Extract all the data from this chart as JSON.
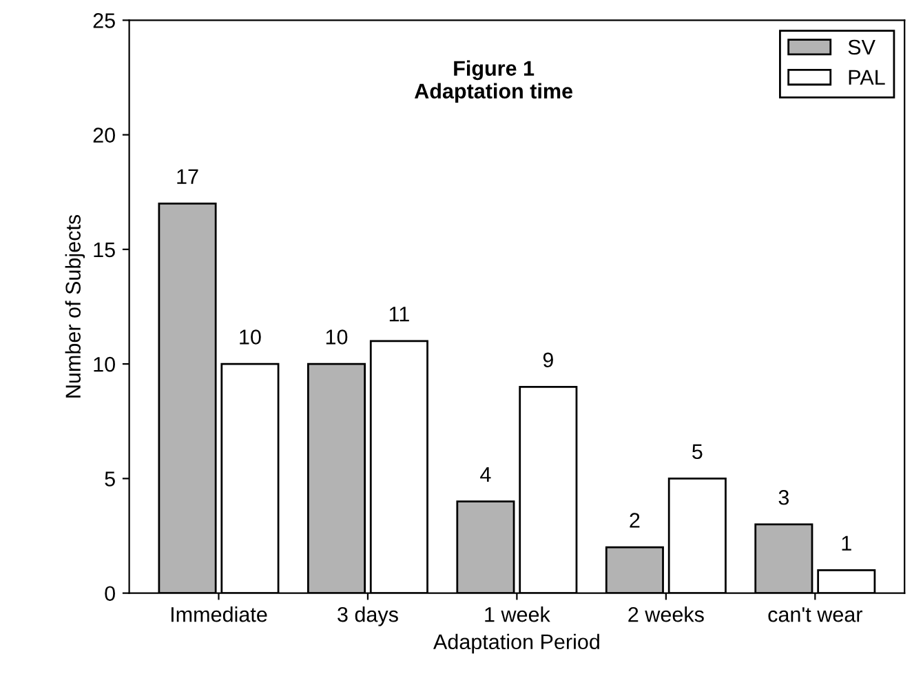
{
  "chart_data": {
    "type": "bar",
    "title": "Figure 1\nAdaptation time",
    "xlabel": "Adaptation Period",
    "ylabel": "Number of Subjects",
    "categories": [
      "Immediate",
      "3 days",
      "1 week",
      "2 weeks",
      "can't wear"
    ],
    "series": [
      {
        "name": "SV",
        "color": "#b3b3b3",
        "values": [
          17,
          10,
          4,
          2,
          3
        ]
      },
      {
        "name": "PAL",
        "color": "#ffffff",
        "values": [
          10,
          11,
          9,
          5,
          1
        ]
      }
    ],
    "ylim": [
      0,
      25
    ],
    "yticks": [
      0,
      5,
      10,
      15,
      20,
      25
    ],
    "data_labels": true,
    "legend": "top right",
    "grid": false
  }
}
